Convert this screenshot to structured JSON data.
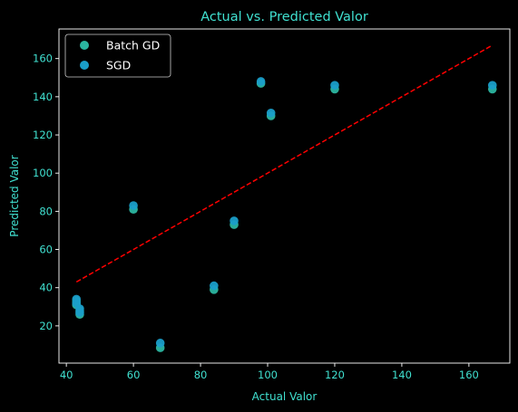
{
  "chart_data": {
    "type": "scatter",
    "title": "Actual vs. Predicted Valor",
    "xlabel": "Actual Valor",
    "ylabel": "Predicted Valor",
    "xlim": [
      37.8,
      172.2
    ],
    "ylim": [
      0.5,
      175.5
    ],
    "xticks": [
      40,
      60,
      80,
      100,
      120,
      140,
      160
    ],
    "yticks": [
      20,
      40,
      60,
      80,
      100,
      120,
      140,
      160
    ],
    "grid": false,
    "legend_position": "top-left",
    "series": [
      {
        "name": "Batch GD",
        "color": "#2bb5a0",
        "x": [
          43,
          43,
          44,
          44,
          60,
          68,
          84,
          90,
          98,
          101,
          120,
          167
        ],
        "y": [
          33,
          31,
          28,
          26,
          81,
          8.5,
          39,
          73,
          147,
          130,
          144,
          144
        ]
      },
      {
        "name": "SGD",
        "color": "#1a9ec9",
        "x": [
          43,
          43,
          44,
          44,
          60,
          68,
          84,
          90,
          98,
          101,
          120,
          167
        ],
        "y": [
          34,
          32,
          29,
          27,
          83,
          11,
          41,
          75,
          148,
          131.5,
          146,
          146
        ]
      }
    ],
    "reference_line": {
      "x": [
        43,
        167
      ],
      "y": [
        43,
        167
      ],
      "color": "#ff0000",
      "style": "dashed"
    }
  },
  "colors": {
    "background": "#000000",
    "axes": "#ffffff",
    "text": "#40e0d0"
  }
}
